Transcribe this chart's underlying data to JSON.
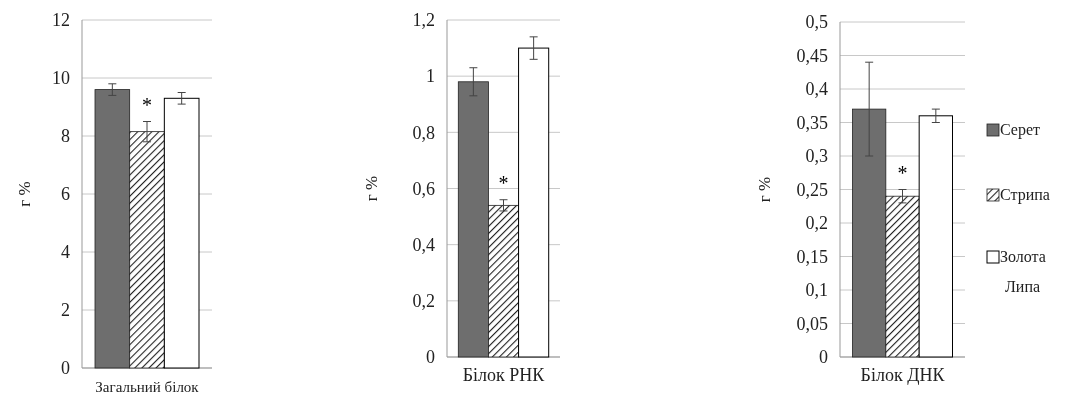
{
  "chart_data": [
    {
      "type": "bar",
      "categories": [
        "Загальний білок"
      ],
      "ylabel": "г %",
      "ylim": [
        0,
        12
      ],
      "yticks": [
        0,
        2,
        4,
        6,
        8,
        10,
        12
      ],
      "grid": "y",
      "legend": false,
      "series": [
        {
          "color": "#6e6e6e",
          "values": [
            9.6
          ],
          "errors": [
            0.2
          ]
        },
        {
          "color": "#222222",
          "values": [
            8.15
          ],
          "errors": [
            0.35
          ]
        },
        {
          "color": "#ffffff",
          "values": [
            9.3
          ],
          "errors": [
            0.2
          ]
        }
      ],
      "annotations": [
        "*"
      ]
    },
    {
      "type": "bar",
      "categories": [
        "Білок РНК"
      ],
      "ylabel": "г %",
      "ylim": [
        0,
        1.2
      ],
      "yticks": [
        {
          "value": 0,
          "label": "0"
        },
        {
          "value": 0.2,
          "label": "0,2"
        },
        {
          "value": 0.4,
          "label": "0,4"
        },
        {
          "value": 0.6,
          "label": "0,6"
        },
        {
          "value": 0.8,
          "label": "0,8"
        },
        {
          "value": 1,
          "label": "1"
        },
        {
          "value": 1.2,
          "label": "1,2"
        }
      ],
      "grid": "y",
      "legend": false,
      "series": [
        {
          "color": "#6e6e6e",
          "values": [
            0.98
          ],
          "errors": [
            0.05
          ]
        },
        {
          "color": "#222222",
          "values": [
            0.54
          ],
          "errors": [
            0.02
          ]
        },
        {
          "color": "#ffffff",
          "values": [
            1.1
          ],
          "errors": [
            0.04
          ]
        }
      ],
      "annotations": [
        "*"
      ]
    },
    {
      "type": "bar",
      "categories": [
        "Білок ДНК"
      ],
      "ylabel": "г %",
      "ylim": [
        0,
        0.5
      ],
      "yticks": [
        {
          "value": 0,
          "label": "0"
        },
        {
          "value": 0.05,
          "label": "0,05"
        },
        {
          "value": 0.1,
          "label": "0,1"
        },
        {
          "value": 0.15,
          "label": "0,15"
        },
        {
          "value": 0.2,
          "label": "0,2"
        },
        {
          "value": 0.25,
          "label": "0,25"
        },
        {
          "value": 0.3,
          "label": "0,3"
        },
        {
          "value": 0.35,
          "label": "0,35"
        },
        {
          "value": 0.4,
          "label": "0,4"
        },
        {
          "value": 0.45,
          "label": "0,45"
        },
        {
          "value": 0.5,
          "label": "0,5"
        }
      ],
      "grid": "y",
      "legend": "right",
      "series": [
        {
          "name": "Серет",
          "color": "#6e6e6e",
          "values": [
            0.37
          ],
          "errors": [
            0.07
          ]
        },
        {
          "name": "Стрипа",
          "color": "#222222",
          "values": [
            0.24
          ],
          "errors": [
            0.01
          ]
        },
        {
          "name": "Золота Липа",
          "color": "#ffffff",
          "values": [
            0.36
          ],
          "errors": [
            0.01
          ]
        }
      ],
      "annotations": [
        "*"
      ]
    }
  ]
}
